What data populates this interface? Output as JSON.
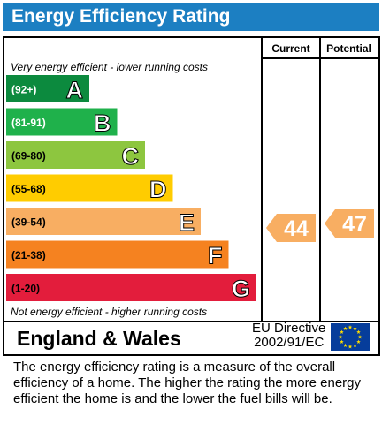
{
  "title": "Energy Efficiency Rating",
  "columns": {
    "current": "Current",
    "potential": "Potential"
  },
  "top_note": "Very energy efficient - lower running costs",
  "bottom_note": "Not energy efficient - higher running costs",
  "chart_data": {
    "type": "bar",
    "categories": [
      "A",
      "B",
      "C",
      "D",
      "E",
      "F",
      "G"
    ],
    "bands": [
      {
        "letter": "A",
        "range": "(92+)",
        "color": "#0c8a3e",
        "range_color": "#ffffff"
      },
      {
        "letter": "B",
        "range": "(81-91)",
        "color": "#1fb14b",
        "range_color": "#ffffff"
      },
      {
        "letter": "C",
        "range": "(69-80)",
        "color": "#8dc63f",
        "range_color": "#000000"
      },
      {
        "letter": "D",
        "range": "(55-68)",
        "color": "#ffcc00",
        "range_color": "#000000"
      },
      {
        "letter": "E",
        "range": "(39-54)",
        "color": "#f8ae62",
        "range_color": "#000000"
      },
      {
        "letter": "F",
        "range": "(21-38)",
        "color": "#f58220",
        "range_color": "#000000"
      },
      {
        "letter": "G",
        "range": "(1-20)",
        "color": "#e31d3c",
        "range_color": "#000000"
      }
    ],
    "current": {
      "value": 44,
      "band": "E",
      "color": "#f8ae62"
    },
    "potential": {
      "value": 47,
      "band": "E",
      "color": "#f8ae62"
    }
  },
  "footer": {
    "country": "England & Wales",
    "directive_line1": "EU Directive",
    "directive_line2": "2002/91/EC",
    "flag_icon": "eu-flag-icon"
  },
  "description": "The energy efficiency rating is a measure of the overall efficiency of a home.  The higher the rating the more energy efficient the home is and the lower the fuel bills will be."
}
